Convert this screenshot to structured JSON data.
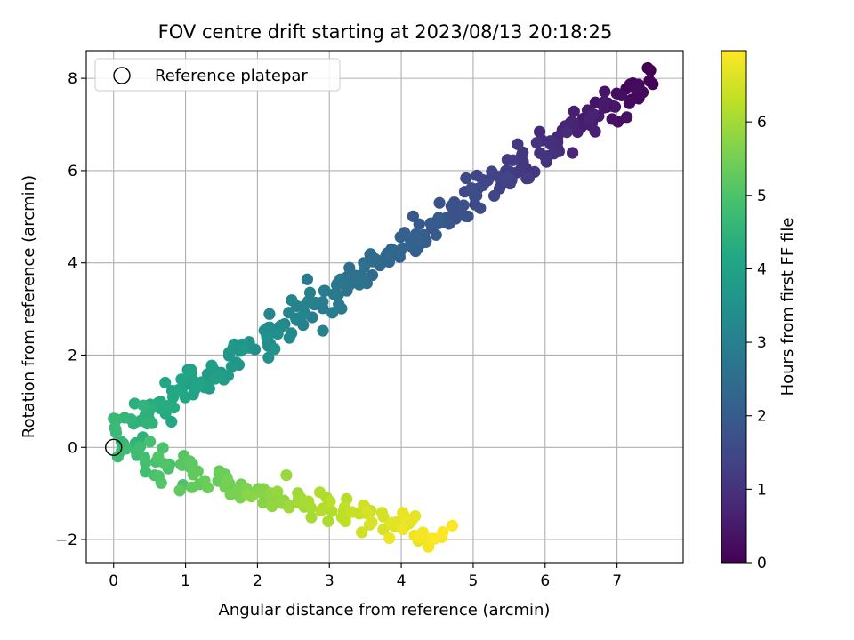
{
  "chart_data": {
    "type": "scatter",
    "title": "FOV centre drift starting at 2023/08/13 20:18:25",
    "xlabel": "Angular distance from reference (arcmin)",
    "ylabel": "Rotation from reference (arcmin)",
    "xlim": [
      -0.38,
      7.92
    ],
    "ylim": [
      -2.5,
      8.6
    ],
    "xticks": [
      0,
      1,
      2,
      3,
      4,
      5,
      6,
      7
    ],
    "yticks": [
      -2,
      0,
      2,
      4,
      6,
      8
    ],
    "ytick_labels": [
      "−2",
      "0",
      "2",
      "4",
      "6",
      "8"
    ],
    "grid": true,
    "legend": {
      "position": "top-left",
      "entries": [
        "Reference platepar"
      ]
    },
    "reference_point": {
      "label": "Reference platepar",
      "x": 0,
      "y": 0
    },
    "colorbar": {
      "label": "Hours from first FF file",
      "colormap": "viridis",
      "range": [
        0,
        6.97
      ],
      "ticks": [
        0,
        1,
        2,
        3,
        4,
        5,
        6
      ]
    },
    "series_note": "",
    "upper_branch_start": {
      "x": 7.5,
      "y": 8.0,
      "hours": 0.0
    },
    "upper_branch_end": {
      "x": 0.0,
      "y": 0.2,
      "hours": 4.7
    },
    "lower_branch_start": {
      "x": 0.2,
      "y": -0.1,
      "hours": 4.75
    },
    "lower_branch_end": {
      "x": 4.55,
      "y": -1.95,
      "hours": 6.97
    },
    "points": []
  }
}
